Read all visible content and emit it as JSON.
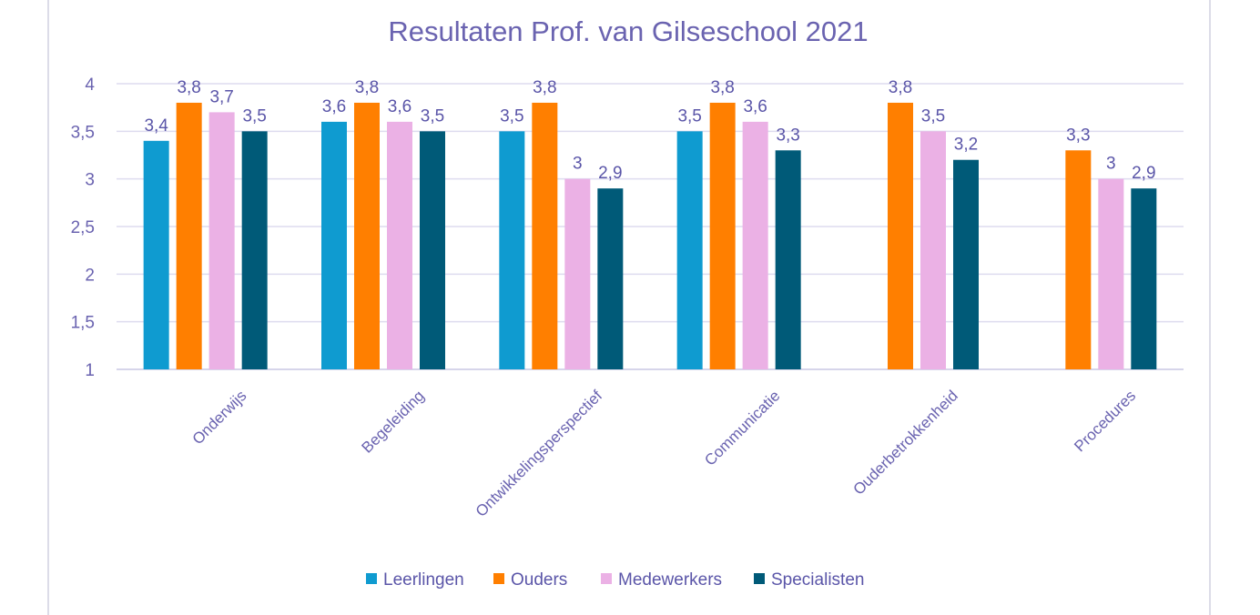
{
  "chart_data": {
    "type": "bar",
    "title": "Resultaten Prof. van Gilseschool 2021",
    "categories": [
      "Onderwijs",
      "Begeleiding",
      "Ontwikkelingsperspectief",
      "Communicatie",
      "Ouderbetrokkenheid",
      "Procedures"
    ],
    "series": [
      {
        "name": "Leerlingen",
        "color": "#0f9bd0",
        "values": [
          3.4,
          3.6,
          3.5,
          3.5,
          null,
          null
        ],
        "labels": [
          "3,4",
          "3,6",
          "3,5",
          "3,5",
          "",
          ""
        ]
      },
      {
        "name": "Ouders",
        "color": "#ff7f00",
        "values": [
          3.8,
          3.8,
          3.8,
          3.8,
          3.8,
          3.3
        ],
        "labels": [
          "3,8",
          "3,8",
          "3,8",
          "3,8",
          "3,8",
          "3,3"
        ]
      },
      {
        "name": "Medewerkers",
        "color": "#ebb1e5",
        "values": [
          3.7,
          3.6,
          3.0,
          3.6,
          3.5,
          3.0
        ],
        "labels": [
          "3,7",
          "3,6",
          "3",
          "3,6",
          "3,5",
          "3"
        ]
      },
      {
        "name": "Specialisten",
        "color": "#005a78",
        "values": [
          3.5,
          3.5,
          2.9,
          3.3,
          3.2,
          2.9
        ],
        "labels": [
          "3,5",
          "3,5",
          "2,9",
          "3,3",
          "3,2",
          "2,9"
        ]
      }
    ],
    "ylim": [
      1,
      4
    ],
    "yticks": [
      1,
      1.5,
      2,
      2.5,
      3,
      3.5,
      4
    ],
    "ytick_labels": [
      "1",
      "1,5",
      "2",
      "2,5",
      "3",
      "3,5",
      "4"
    ],
    "grid": true,
    "legend": "bottom",
    "xlabel": "",
    "ylabel": ""
  }
}
